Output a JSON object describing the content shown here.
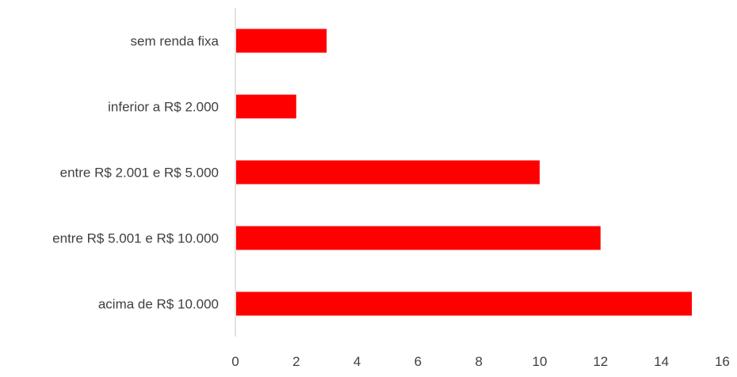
{
  "chart_data": {
    "type": "bar",
    "orientation": "horizontal",
    "title": "",
    "xlabel": "",
    "ylabel": "",
    "categories": [
      "sem renda fixa",
      "inferior a R$ 2.000",
      "entre R$ 2.001 e R$ 5.000",
      "entre R$ 5.001 e R$ 10.000",
      "acima de R$ 10.000"
    ],
    "series": [
      {
        "values": [
          3,
          2,
          10,
          12,
          15
        ],
        "color": "#ff0000"
      }
    ],
    "xlim": [
      0,
      16
    ],
    "xticks": [
      "0",
      "2",
      "4",
      "6",
      "8",
      "10",
      "12",
      "14",
      "16"
    ],
    "grid": false,
    "legend": "none",
    "axis_color": "#d9d9d9",
    "text_color": "#404040"
  }
}
